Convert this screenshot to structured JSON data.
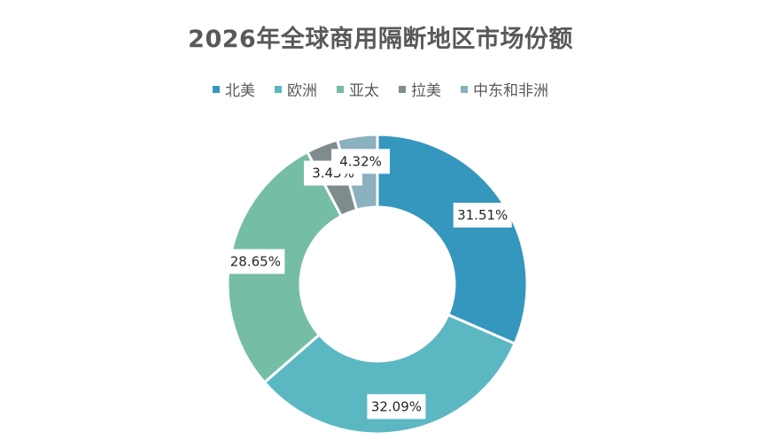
{
  "chart_data": {
    "type": "pie",
    "subtype": "donut",
    "title": "2026年全球商用隔断地区市场份额",
    "legend_position": "top",
    "categories": [
      "北美",
      "欧洲",
      "亚太",
      "拉美",
      "中东和非洲"
    ],
    "values": [
      31.51,
      32.09,
      28.65,
      3.43,
      4.32
    ],
    "data_labels": [
      "31.51%",
      "32.09%",
      "28.65%",
      "3.43%",
      "4.32%"
    ],
    "colors": [
      "#3596BE",
      "#5BB8C3",
      "#76BDA5",
      "#7F8C8D",
      "#8BB0BE"
    ]
  }
}
